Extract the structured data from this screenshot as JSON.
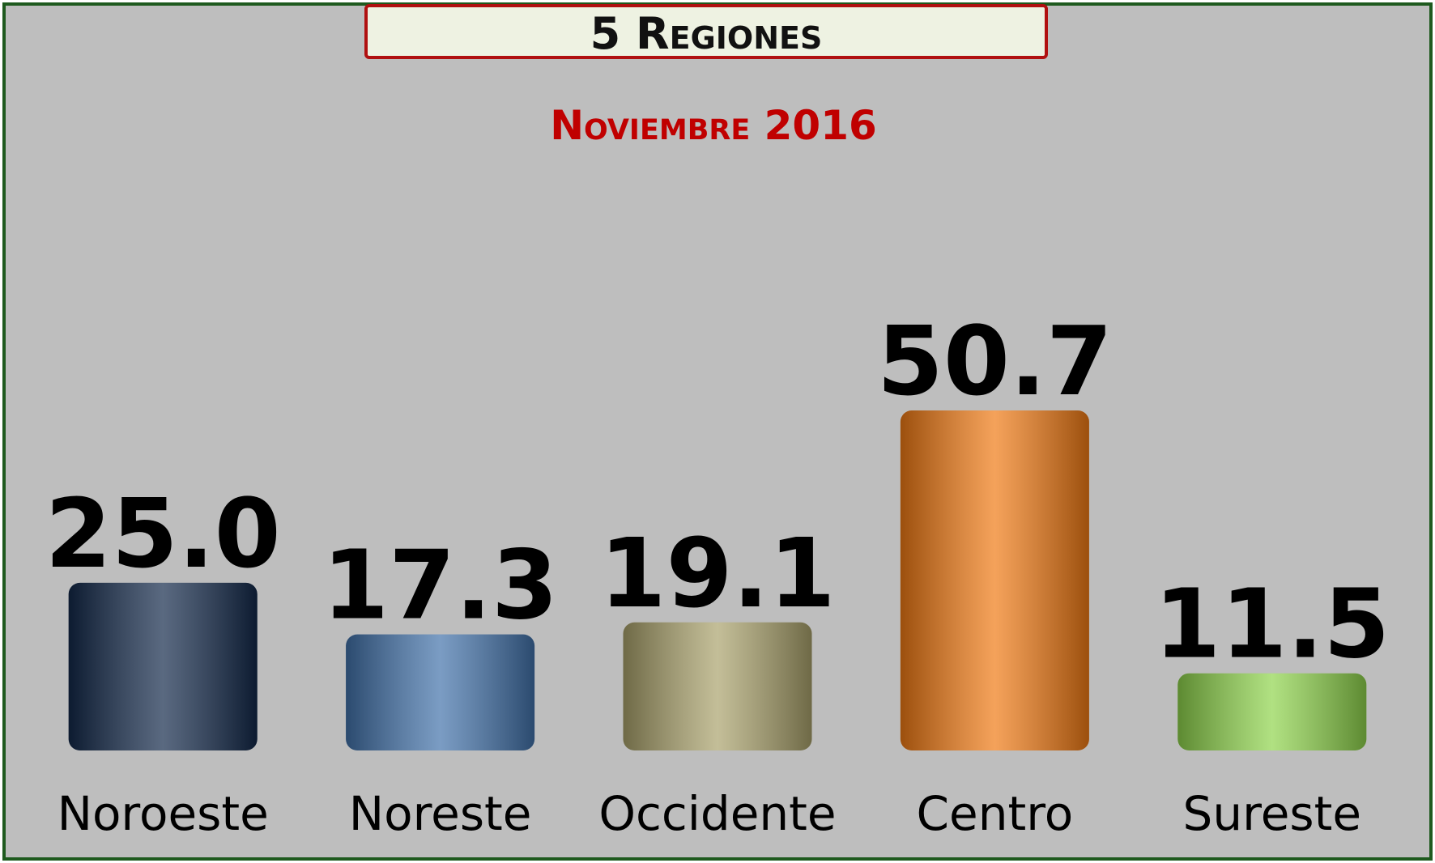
{
  "chart_data": {
    "type": "bar",
    "title": "5 Regiones",
    "subtitle": "Noviembre 2016",
    "categories": [
      "Noroeste",
      "Noreste",
      "Occidente",
      "Centro",
      "Sureste"
    ],
    "values": [
      25.0,
      17.3,
      19.1,
      50.7,
      11.5
    ],
    "value_labels": [
      "25.0",
      "17.3",
      "19.1",
      "50.7",
      "11.5"
    ],
    "colors": [
      "#13294a",
      "#4272aa",
      "#aaa26c",
      "#f07a14",
      "#8fd44c"
    ]
  }
}
